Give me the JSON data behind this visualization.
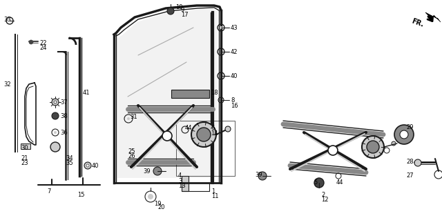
{
  "bg_color": "#ffffff",
  "fig_width": 6.4,
  "fig_height": 3.16,
  "dpi": 100,
  "line_color": "#1a1a1a",
  "gray": "#888888",
  "darkgray": "#444444",
  "lightgray": "#cccccc"
}
